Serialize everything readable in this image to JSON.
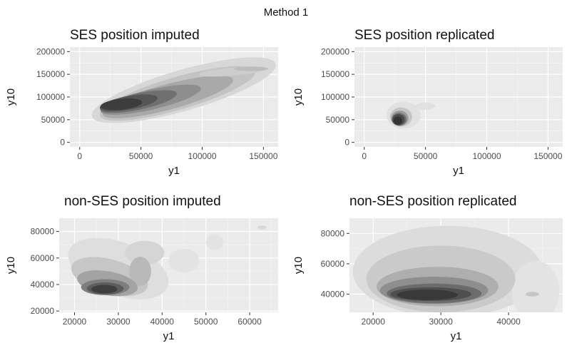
{
  "figure": {
    "title": "Method 1"
  },
  "chart_data": [
    {
      "type": "density2d",
      "title": "SES position imputed",
      "xlabel": "y1",
      "ylabel": "y10",
      "xlim": [
        -8000,
        162000
      ],
      "ylim": [
        -10000,
        210000
      ],
      "xticks": [
        0,
        50000,
        100000,
        150000
      ],
      "yticks": [
        0,
        50000,
        100000,
        150000,
        200000
      ],
      "xtick_labels": [
        "0",
        "50000",
        "100000",
        "150000"
      ],
      "ytick_labels": [
        "0",
        "50000",
        "100000",
        "150000",
        "200000"
      ],
      "grid": true,
      "density_peaks": [
        [
          35000,
          85000
        ]
      ]
    },
    {
      "type": "density2d",
      "title": "SES position replicated",
      "xlabel": "y1",
      "ylabel": "y10",
      "xlim": [
        -8000,
        162000
      ],
      "ylim": [
        -10000,
        210000
      ],
      "xticks": [
        0,
        50000,
        100000,
        150000
      ],
      "yticks": [
        0,
        50000,
        100000,
        150000,
        200000
      ],
      "xtick_labels": [
        "0",
        "50000",
        "100000",
        "150000"
      ],
      "ytick_labels": [
        "0",
        "50000",
        "100000",
        "150000",
        "200000"
      ],
      "grid": true,
      "density_peaks": [
        [
          28000,
          50000
        ]
      ]
    },
    {
      "type": "density2d",
      "title": "non-SES position imputed",
      "xlabel": "y1",
      "ylabel": "y10",
      "xlim": [
        16500,
        66500
      ],
      "ylim": [
        19000,
        90000
      ],
      "xticks": [
        20000,
        30000,
        40000,
        50000,
        60000
      ],
      "yticks": [
        20000,
        40000,
        60000,
        80000
      ],
      "xtick_labels": [
        "20000",
        "30000",
        "40000",
        "50000",
        "60000"
      ],
      "ytick_labels": [
        "20000",
        "40000",
        "60000",
        "80000"
      ],
      "grid": true,
      "density_peaks": [
        [
          27000,
          37000
        ]
      ]
    },
    {
      "type": "density2d",
      "title": "non-SES position replicated",
      "xlabel": "y1",
      "ylabel": "y10",
      "xlim": [
        16500,
        48000
      ],
      "ylim": [
        28000,
        90000
      ],
      "xticks": [
        20000,
        30000,
        40000
      ],
      "yticks": [
        40000,
        60000,
        80000
      ],
      "xtick_labels": [
        "20000",
        "30000",
        "40000"
      ],
      "ytick_labels": [
        "40000",
        "60000",
        "80000"
      ],
      "grid": true,
      "density_peaks": [
        [
          28000,
          40000
        ]
      ]
    }
  ]
}
